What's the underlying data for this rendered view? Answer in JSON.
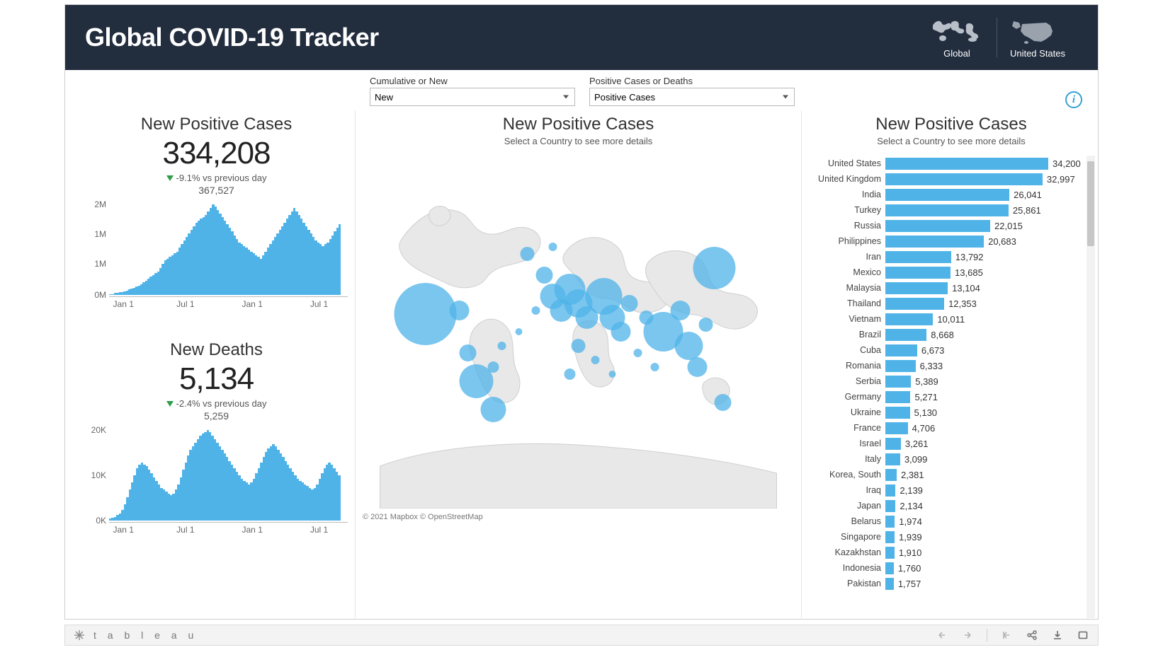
{
  "colors": {
    "header_bg": "#222d3e",
    "accent": "#4fb3e8",
    "map_fill": "#e8e8e8",
    "map_stroke": "#cfcfcf",
    "delta_green": "#2e9e4a",
    "axis_text": "#666666",
    "bar_color": "#4fb3e8"
  },
  "header": {
    "title": "Global COVID-19 Tracker",
    "toggles": {
      "global_label": "Global",
      "us_label": "United States"
    }
  },
  "filters": {
    "left": {
      "label": "Cumulative or New",
      "value": "New"
    },
    "right": {
      "label": "Positive Cases or Deaths",
      "value": "Positive Cases"
    }
  },
  "info_button": "i",
  "left_panel": {
    "cases": {
      "title": "New Positive Cases",
      "value": "334,208",
      "delta_text": "-9.1% vs previous day",
      "previous": "367,527",
      "y_ticks": [
        "2M",
        "1M",
        "1M",
        "0M"
      ],
      "y_tick_pos": [
        0,
        33,
        66,
        100
      ],
      "x_ticks": [
        "Jan 1",
        "Jul 1",
        "Jan 1",
        "Jul 1"
      ],
      "x_tick_pos": [
        6,
        32,
        60,
        88
      ],
      "bars": [
        1,
        1,
        2,
        2,
        3,
        3,
        4,
        5,
        6,
        7,
        8,
        9,
        10,
        12,
        14,
        16,
        18,
        20,
        22,
        24,
        26,
        30,
        34,
        38,
        40,
        42,
        44,
        46,
        48,
        52,
        56,
        60,
        64,
        68,
        72,
        76,
        80,
        82,
        84,
        86,
        88,
        92,
        96,
        100,
        98,
        94,
        90,
        86,
        82,
        78,
        74,
        70,
        66,
        62,
        58,
        56,
        54,
        52,
        50,
        48,
        46,
        44,
        42,
        40,
        44,
        48,
        52,
        56,
        60,
        64,
        68,
        72,
        76,
        80,
        84,
        88,
        92,
        96,
        92,
        88,
        84,
        80,
        76,
        72,
        68,
        64,
        60,
        58,
        56,
        54,
        56,
        58,
        62,
        66,
        70,
        74,
        78
      ]
    },
    "deaths": {
      "title": "New Deaths",
      "value": "5,134",
      "delta_text": "-2.4% vs previous day",
      "previous": "5,259",
      "y_ticks": [
        "20K",
        "10K",
        "0K"
      ],
      "y_tick_pos": [
        0,
        50,
        100
      ],
      "x_ticks": [
        "Jan 1",
        "Jul 1",
        "Jan 1",
        "Jul 1"
      ],
      "x_tick_pos": [
        6,
        32,
        60,
        88
      ],
      "bars": [
        2,
        3,
        4,
        6,
        8,
        12,
        18,
        26,
        34,
        42,
        50,
        58,
        62,
        64,
        62,
        60,
        56,
        52,
        48,
        44,
        40,
        36,
        34,
        32,
        30,
        28,
        30,
        34,
        40,
        48,
        56,
        64,
        72,
        78,
        82,
        86,
        90,
        94,
        96,
        98,
        100,
        98,
        94,
        90,
        86,
        82,
        78,
        74,
        70,
        66,
        62,
        58,
        54,
        50,
        46,
        44,
        42,
        40,
        42,
        46,
        52,
        58,
        64,
        70,
        76,
        80,
        82,
        84,
        82,
        78,
        74,
        70,
        66,
        62,
        58,
        54,
        50,
        46,
        44,
        42,
        40,
        38,
        36,
        34,
        36,
        40,
        46,
        52,
        58,
        62,
        64,
        62,
        58,
        54,
        50
      ]
    }
  },
  "map_panel": {
    "title": "New Positive Cases",
    "subtitle": "Select a Country to see more details",
    "attribution": "© 2021 Mapbox  © OpenStreetMap",
    "bubbles": [
      {
        "x": 14,
        "y": 45,
        "r": 44
      },
      {
        "x": 22,
        "y": 44,
        "r": 14
      },
      {
        "x": 24,
        "y": 56,
        "r": 12
      },
      {
        "x": 26,
        "y": 64,
        "r": 24
      },
      {
        "x": 30,
        "y": 72,
        "r": 18
      },
      {
        "x": 30,
        "y": 60,
        "r": 8
      },
      {
        "x": 32,
        "y": 54,
        "r": 6
      },
      {
        "x": 38,
        "y": 28,
        "r": 10
      },
      {
        "x": 42,
        "y": 34,
        "r": 12
      },
      {
        "x": 44,
        "y": 40,
        "r": 18
      },
      {
        "x": 46,
        "y": 44,
        "r": 16
      },
      {
        "x": 48,
        "y": 38,
        "r": 22
      },
      {
        "x": 50,
        "y": 42,
        "r": 20
      },
      {
        "x": 52,
        "y": 46,
        "r": 16
      },
      {
        "x": 50,
        "y": 54,
        "r": 10
      },
      {
        "x": 48,
        "y": 62,
        "r": 8
      },
      {
        "x": 54,
        "y": 58,
        "r": 6
      },
      {
        "x": 56,
        "y": 40,
        "r": 26
      },
      {
        "x": 58,
        "y": 46,
        "r": 18
      },
      {
        "x": 60,
        "y": 50,
        "r": 14
      },
      {
        "x": 62,
        "y": 42,
        "r": 12
      },
      {
        "x": 66,
        "y": 46,
        "r": 10
      },
      {
        "x": 70,
        "y": 50,
        "r": 28
      },
      {
        "x": 74,
        "y": 44,
        "r": 14
      },
      {
        "x": 76,
        "y": 54,
        "r": 20
      },
      {
        "x": 78,
        "y": 60,
        "r": 14
      },
      {
        "x": 80,
        "y": 48,
        "r": 10
      },
      {
        "x": 82,
        "y": 32,
        "r": 30
      },
      {
        "x": 84,
        "y": 70,
        "r": 12
      },
      {
        "x": 44,
        "y": 26,
        "r": 6
      },
      {
        "x": 40,
        "y": 44,
        "r": 6
      },
      {
        "x": 36,
        "y": 50,
        "r": 5
      },
      {
        "x": 58,
        "y": 62,
        "r": 5
      },
      {
        "x": 64,
        "y": 56,
        "r": 6
      },
      {
        "x": 68,
        "y": 60,
        "r": 6
      }
    ]
  },
  "rank_panel": {
    "title": "New Positive Cases",
    "subtitle": "Select a Country to see more details",
    "max_value": 34200,
    "rows": [
      {
        "label": "United States",
        "value": 34200,
        "display": "34,200"
      },
      {
        "label": "United Kingdom",
        "value": 32997,
        "display": "32,997"
      },
      {
        "label": "India",
        "value": 26041,
        "display": "26,041"
      },
      {
        "label": "Turkey",
        "value": 25861,
        "display": "25,861"
      },
      {
        "label": "Russia",
        "value": 22015,
        "display": "22,015"
      },
      {
        "label": "Philippines",
        "value": 20683,
        "display": "20,683"
      },
      {
        "label": "Iran",
        "value": 13792,
        "display": "13,792"
      },
      {
        "label": "Mexico",
        "value": 13685,
        "display": "13,685"
      },
      {
        "label": "Malaysia",
        "value": 13104,
        "display": "13,104"
      },
      {
        "label": "Thailand",
        "value": 12353,
        "display": "12,353"
      },
      {
        "label": "Vietnam",
        "value": 10011,
        "display": "10,011"
      },
      {
        "label": "Brazil",
        "value": 8668,
        "display": "8,668"
      },
      {
        "label": "Cuba",
        "value": 6673,
        "display": "6,673"
      },
      {
        "label": "Romania",
        "value": 6333,
        "display": "6,333"
      },
      {
        "label": "Serbia",
        "value": 5389,
        "display": "5,389"
      },
      {
        "label": "Germany",
        "value": 5271,
        "display": "5,271"
      },
      {
        "label": "Ukraine",
        "value": 5130,
        "display": "5,130"
      },
      {
        "label": "France",
        "value": 4706,
        "display": "4,706"
      },
      {
        "label": "Israel",
        "value": 3261,
        "display": "3,261"
      },
      {
        "label": "Italy",
        "value": 3099,
        "display": "3,099"
      },
      {
        "label": "Korea, South",
        "value": 2381,
        "display": "2,381"
      },
      {
        "label": "Iraq",
        "value": 2139,
        "display": "2,139"
      },
      {
        "label": "Japan",
        "value": 2134,
        "display": "2,134"
      },
      {
        "label": "Belarus",
        "value": 1974,
        "display": "1,974"
      },
      {
        "label": "Singapore",
        "value": 1939,
        "display": "1,939"
      },
      {
        "label": "Kazakhstan",
        "value": 1910,
        "display": "1,910"
      },
      {
        "label": "Indonesia",
        "value": 1760,
        "display": "1,760"
      },
      {
        "label": "Pakistan",
        "value": 1757,
        "display": "1,757"
      }
    ]
  },
  "bottom_bar": {
    "logo_text": "t a b l e a u"
  }
}
